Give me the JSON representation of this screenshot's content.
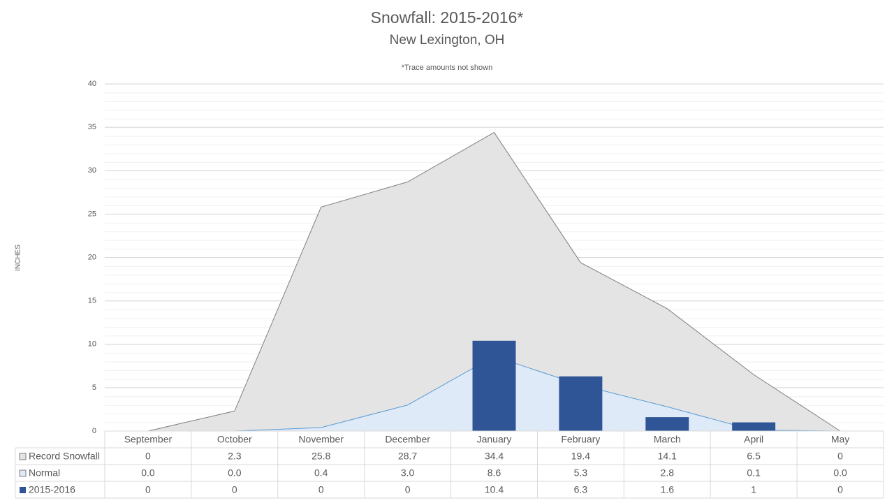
{
  "chart_data": {
    "type": "bar",
    "title": "Snowfall: 2015-2016*",
    "subtitle": "New Lexington, OH",
    "annotation": "*Trace amounts not shown",
    "y_label": "INCHES",
    "categories": [
      "September",
      "October",
      "November",
      "December",
      "January",
      "February",
      "March",
      "April",
      "May"
    ],
    "series": [
      {
        "name": "Record Snowfall",
        "type": "area",
        "color": "#e4e4e4",
        "line_color": "#7f7f7f",
        "values": [
          0,
          2.3,
          25.8,
          28.7,
          34.4,
          19.4,
          14.1,
          6.5,
          0
        ]
      },
      {
        "name": "Normal",
        "type": "area",
        "color": "#deeaf7",
        "line_color": "#5b9bd5",
        "values": [
          0,
          0,
          0.4,
          3.0,
          8.6,
          5.3,
          2.8,
          0.1,
          0
        ],
        "value_labels": [
          "0.0",
          "0.0",
          "0.4",
          "3.0",
          "8.6",
          "5.3",
          "2.8",
          "0.1",
          "0.0"
        ]
      },
      {
        "name": "2015-2016",
        "type": "bar",
        "color": "#2f5597",
        "values": [
          0,
          0,
          0,
          0,
          10.4,
          6.3,
          1.6,
          1,
          0
        ]
      }
    ],
    "ylim": [
      0,
      40
    ],
    "yticks": [
      0,
      5,
      10,
      15,
      20,
      25,
      30,
      35,
      40
    ],
    "grid": true
  }
}
